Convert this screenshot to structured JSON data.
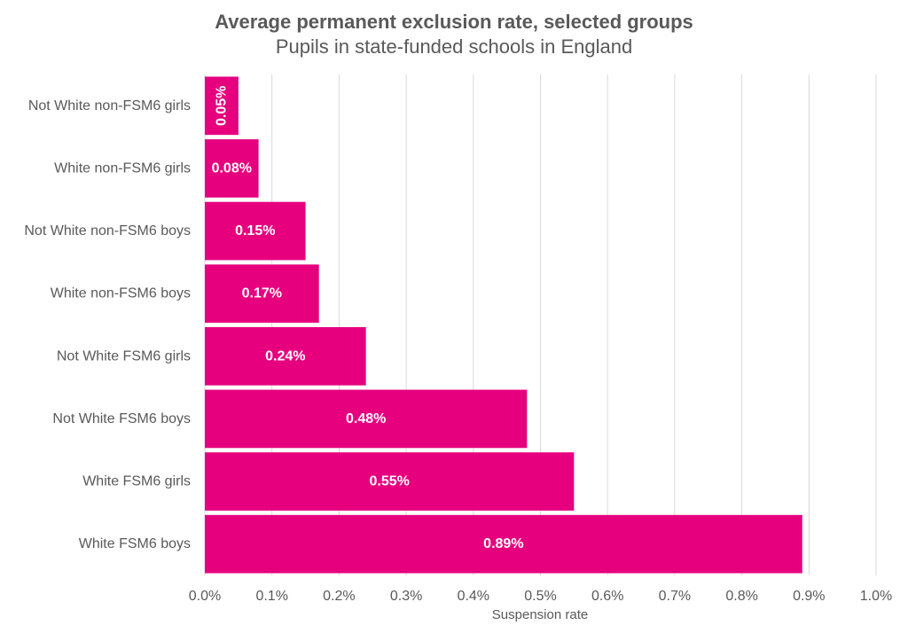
{
  "chart_data": {
    "type": "bar",
    "orientation": "horizontal",
    "title": "Average permanent exclusion rate, selected groups",
    "subtitle": "Pupils in state-funded schools in England",
    "xlabel": "Suspension rate",
    "ylabel": "",
    "xlim": [
      0,
      1.0
    ],
    "x_ticks": [
      "0.0%",
      "0.1%",
      "0.2%",
      "0.3%",
      "0.4%",
      "0.5%",
      "0.6%",
      "0.7%",
      "0.8%",
      "0.9%",
      "1.0%"
    ],
    "grid": true,
    "legend": "none",
    "bar_color": "#e6007e",
    "categories": [
      "Not White non-FSM6 girls",
      "White non-FSM6 girls",
      "Not White non-FSM6 boys",
      "White non-FSM6 boys",
      "Not White FSM6 girls",
      "Not White FSM6 boys",
      "White FSM6 girls",
      "White FSM6 boys"
    ],
    "values": [
      0.05,
      0.08,
      0.15,
      0.17,
      0.24,
      0.48,
      0.55,
      0.89
    ],
    "data_labels": [
      "0.05%",
      "0.08%",
      "0.15%",
      "0.17%",
      "0.24%",
      "0.48%",
      "0.55%",
      "0.89%"
    ]
  }
}
